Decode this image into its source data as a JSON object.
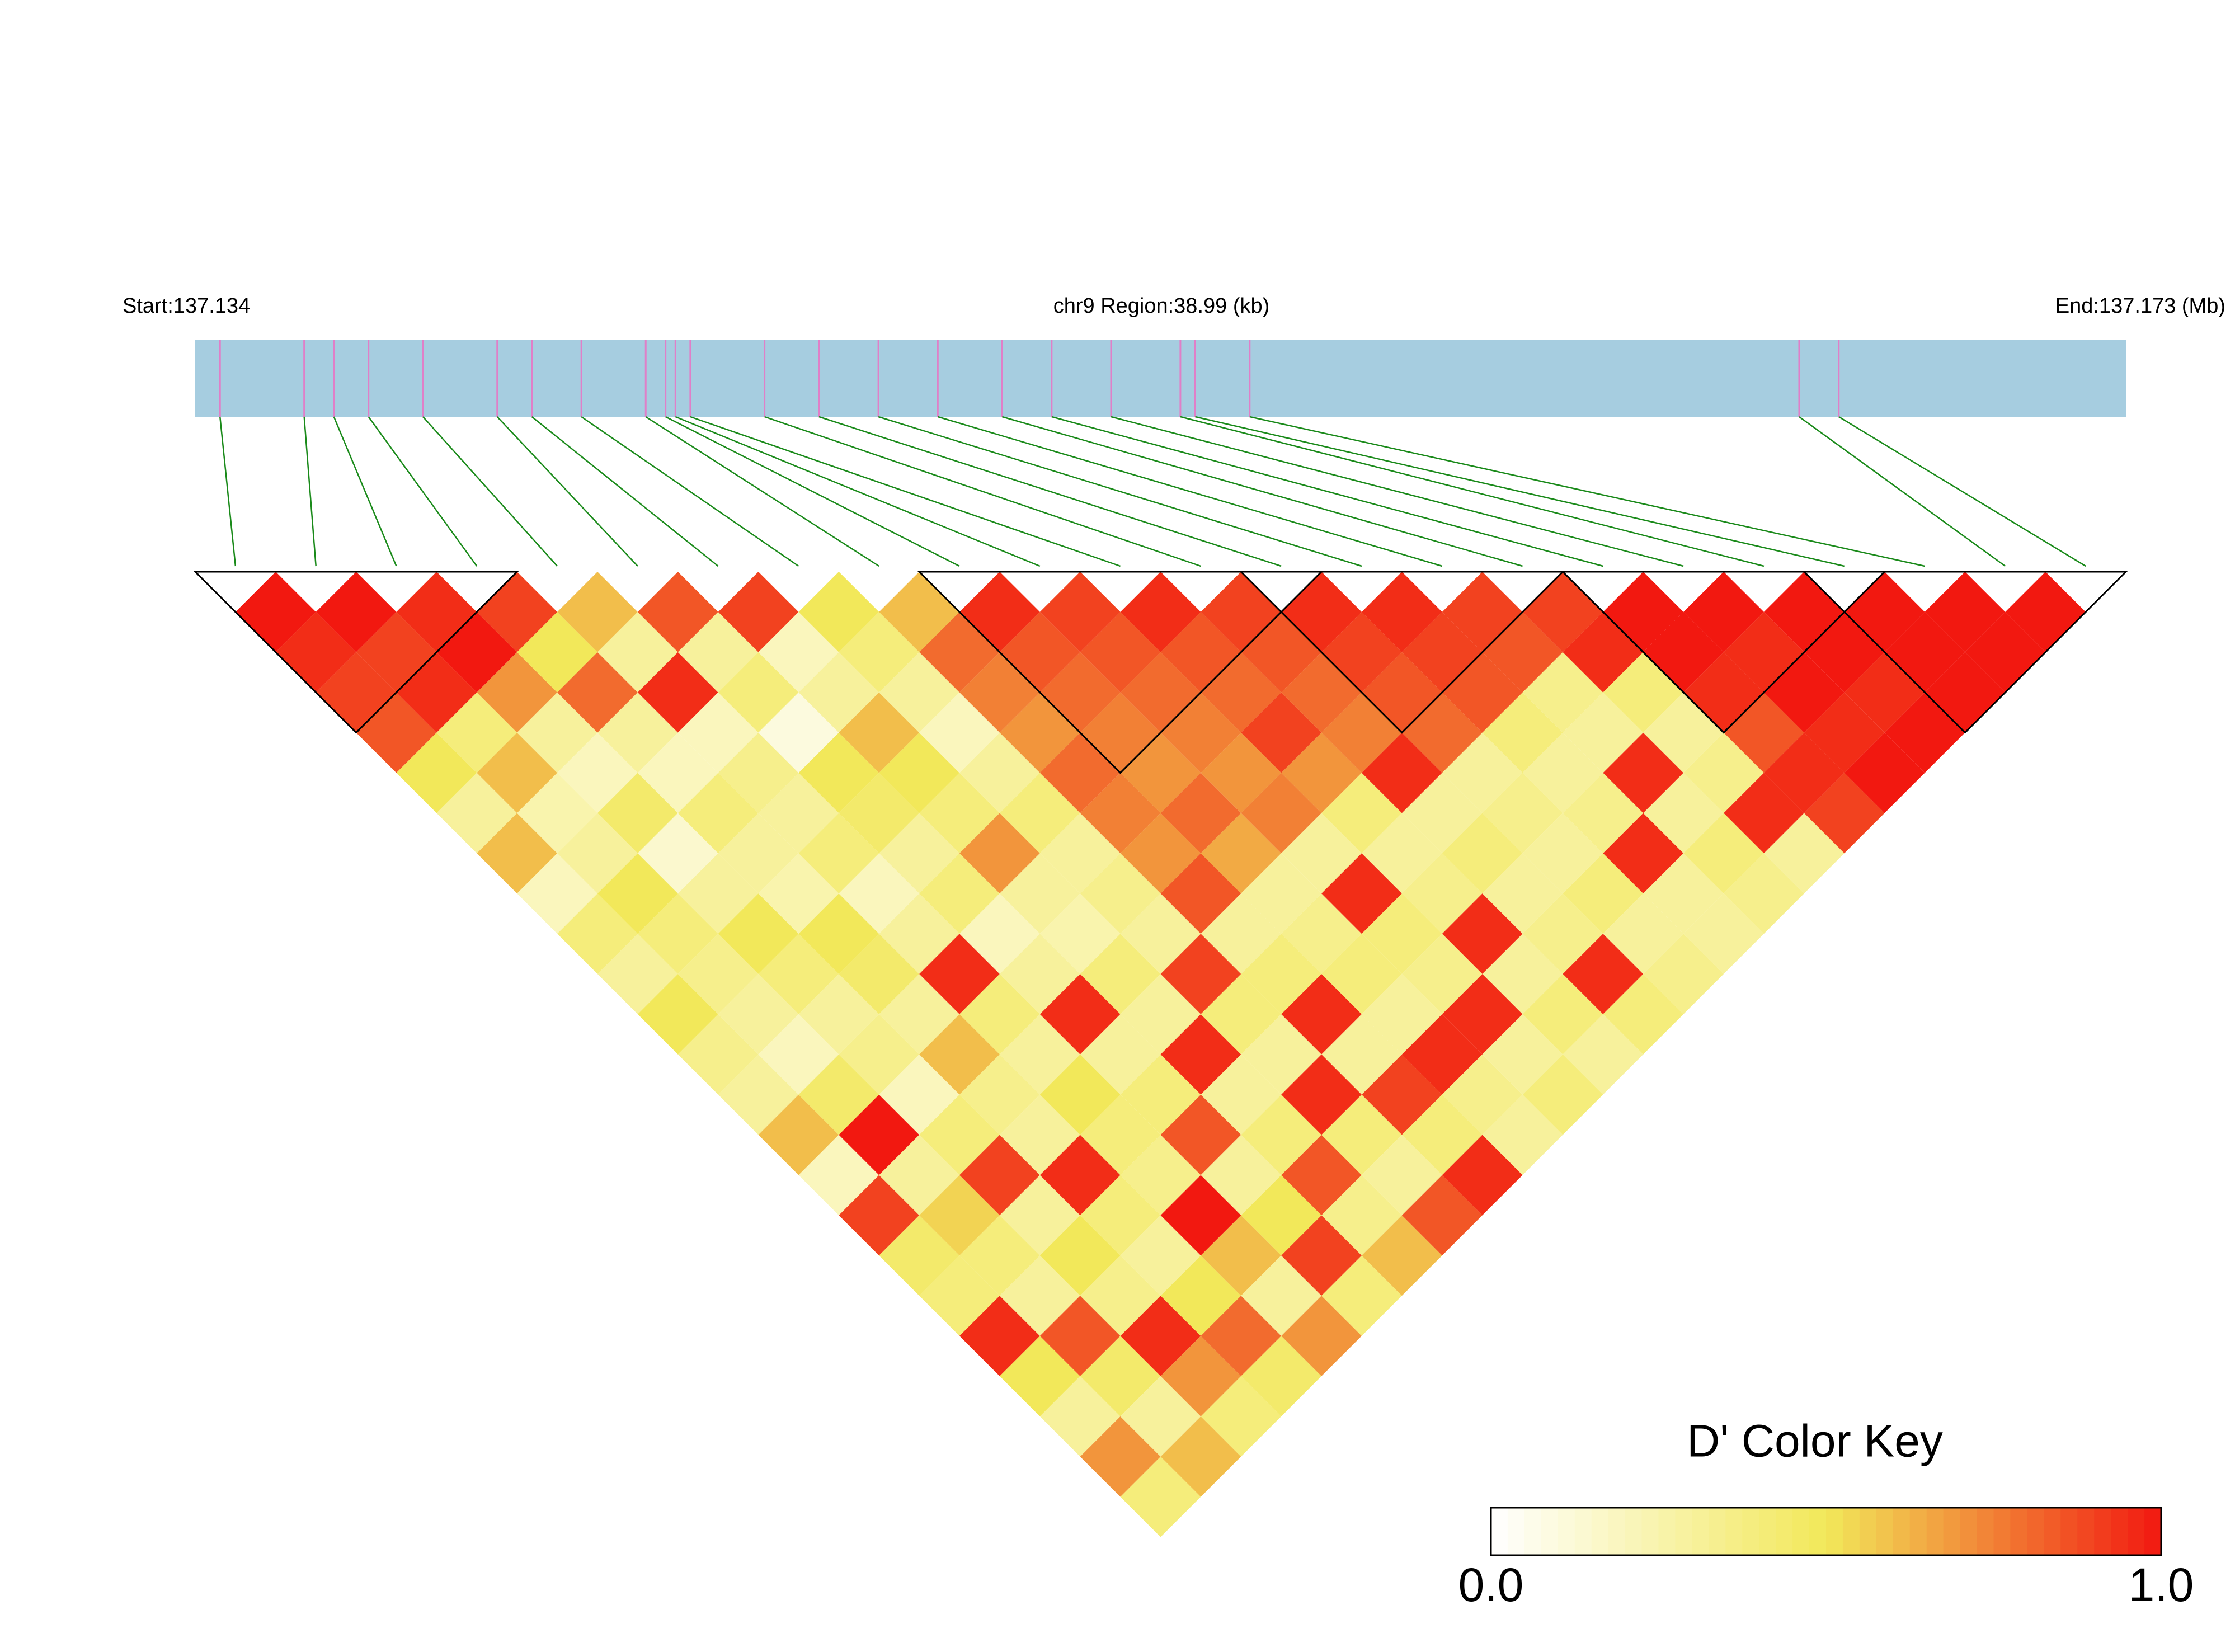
{
  "chart_data": {
    "type": "ld-heatmap",
    "start_label": "Start:137.134",
    "region_label": "chr9 Region:38.99 (kb)",
    "end_label": "End:137.173 (Mb)",
    "xlim": [
      137.134,
      137.173
    ],
    "snps": [
      137.1345,
      137.1362,
      137.1368,
      137.1375,
      137.1386,
      137.1401,
      137.1408,
      137.1418,
      137.1431,
      137.1435,
      137.1437,
      137.144,
      137.1455,
      137.1466,
      137.1478,
      137.149,
      137.1503,
      137.1513,
      137.1525,
      137.1539,
      137.1542,
      137.1553,
      137.1664,
      137.1672
    ],
    "ld": [
      [
        1,
        0.95,
        0.9,
        0.85,
        0.5,
        0.3,
        0.6,
        0.2,
        0.4,
        0.3,
        0.5,
        0.35,
        0.3,
        0.6,
        0.2,
        0.9,
        0.45,
        0.4,
        0.95,
        0.5,
        0.3,
        0.7,
        0.4
      ],
      [
        1,
        0.9,
        0.95,
        0.4,
        0.6,
        0.25,
        0.3,
        0.5,
        0.4,
        0.35,
        0.3,
        0.2,
        0.45,
        1,
        0.3,
        0.55,
        0.4,
        0.3,
        0.85,
        0.45,
        0.3,
        0.6
      ],
      [
        0.95,
        1,
        0.7,
        0.3,
        0.2,
        0.45,
        0.15,
        0.3,
        0.5,
        0.4,
        0.3,
        0.35,
        0.2,
        0.4,
        0.9,
        0.3,
        0.5,
        0.35,
        0.95,
        0.7,
        0.4
      ],
      [
        0.9,
        0.5,
        0.8,
        0.3,
        0.2,
        0.4,
        0.3,
        0.25,
        0.5,
        0.45,
        0.3,
        0.6,
        0.35,
        0.3,
        0.95,
        0.4,
        0.3,
        0.5,
        0.8,
        0.45
      ],
      [
        0.6,
        0.3,
        0.95,
        0.2,
        0.35,
        0.3,
        0.4,
        0.2,
        0.3,
        0.95,
        0.4,
        0.3,
        0.5,
        0.4,
        0.35,
        1,
        0.6,
        0.3,
        0.7
      ],
      [
        0.85,
        0.3,
        0.4,
        0.1,
        0.5,
        0.45,
        0.3,
        0.4,
        0.2,
        0.3,
        0.95,
        0.3,
        0.4,
        0.85,
        0.3,
        0.5,
        0.9,
        0.4
      ],
      [
        0.9,
        0.2,
        0.3,
        0.6,
        0.5,
        0.4,
        0.7,
        0.3,
        0.25,
        0.4,
        0.3,
        0.95,
        0.3,
        0.4,
        0.85,
        0.35,
        0.6
      ],
      [
        0.5,
        0.4,
        0.3,
        0.2,
        0.3,
        0.4,
        0.3,
        0.35,
        0.3,
        0.9,
        0.4,
        0.3,
        0.95,
        0.4,
        0.3,
        0.85
      ],
      [
        0.6,
        0.8,
        0.75,
        0.7,
        0.8,
        0.75,
        0.7,
        0.85,
        0.3,
        0.4,
        0.95,
        0.3,
        0.9,
        0.4,
        0.95
      ],
      [
        0.95,
        0.85,
        0.8,
        0.75,
        0.7,
        0.8,
        0.65,
        0.3,
        0.35,
        0.4,
        0.3,
        0.95,
        0.35,
        0.3
      ],
      [
        0.9,
        0.85,
        0.8,
        0.75,
        0.7,
        0.75,
        0.3,
        0.95,
        0.4,
        0.35,
        0.95,
        0.3,
        0.4
      ],
      [
        0.95,
        0.85,
        0.8,
        0.9,
        0.7,
        0.4,
        0.3,
        0.35,
        0.95,
        0.3,
        0.4,
        0.3
      ],
      [
        0.9,
        0.85,
        0.8,
        0.75,
        0.95,
        0.3,
        0.4,
        0.3,
        0.35,
        0.95,
        0.4
      ],
      [
        0.95,
        0.9,
        0.85,
        0.8,
        0.3,
        0.35,
        0.3,
        0.4,
        0.3,
        0.35
      ],
      [
        0.95,
        0.9,
        0.85,
        0.4,
        0.3,
        0.35,
        0.95,
        0.3,
        0.3
      ],
      [
        0.9,
        0.85,
        0.35,
        0.3,
        0.95,
        0.3,
        0.4,
        0.35
      ],
      [
        0.9,
        0.95,
        0.4,
        0.3,
        0.35,
        0.95,
        0.3
      ],
      [
        1,
        1,
        0.95,
        0.85,
        0.95,
        0.9
      ],
      [
        1,
        0.95,
        1,
        0.95,
        1
      ],
      [
        1,
        1,
        0.95,
        1
      ],
      [
        1,
        1,
        1
      ],
      [
        1,
        1
      ],
      [
        1
      ]
    ],
    "blocks": [
      [
        0,
        3
      ],
      [
        9,
        13
      ],
      [
        13,
        16
      ],
      [
        17,
        20
      ],
      [
        20,
        23
      ]
    ],
    "colorscale": [
      [
        0,
        "#ffffff"
      ],
      [
        0.5,
        "#f2e85a"
      ],
      [
        1,
        "#f21810"
      ]
    ],
    "bar_color": "#a6cde0",
    "snp_color": "#e07fc8",
    "connector_color": "#1a8a1a",
    "key_title": "D' Color Key",
    "key_ticks": [
      {
        "value": 0,
        "label": "0.0"
      },
      {
        "value": 1,
        "label": "1.0"
      }
    ]
  }
}
